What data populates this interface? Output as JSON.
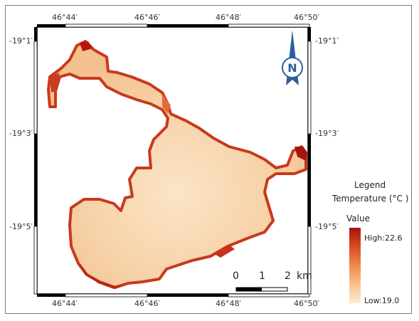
{
  "map": {
    "top_lon_labels": [
      "46°44′",
      "46°46′",
      "46°48′",
      "46°50′"
    ],
    "bottom_lon_labels": [
      "46°44′",
      "46°46′",
      "46°48′",
      "46°50′"
    ],
    "left_lat_labels": [
      "-19°1′",
      "-19°3′",
      "-19°5′"
    ],
    "right_lat_labels": [
      "-19°1′",
      "-19°3′",
      "-19°5′"
    ],
    "north_arrow_letter": "N",
    "scale_bar": {
      "labels": [
        "0",
        "1",
        "2"
      ],
      "unit": "km"
    }
  },
  "legend": {
    "title": "Legend",
    "subtitle": "Temperature (°C )",
    "value_label": "Value",
    "high_label": "High:22.6",
    "low_label": "Low:19.0",
    "high_value": 22.6,
    "low_value": 19.0,
    "colors": {
      "high": "#a5140f",
      "mid": "#ef8a4d",
      "low": "#fdebd6"
    }
  }
}
